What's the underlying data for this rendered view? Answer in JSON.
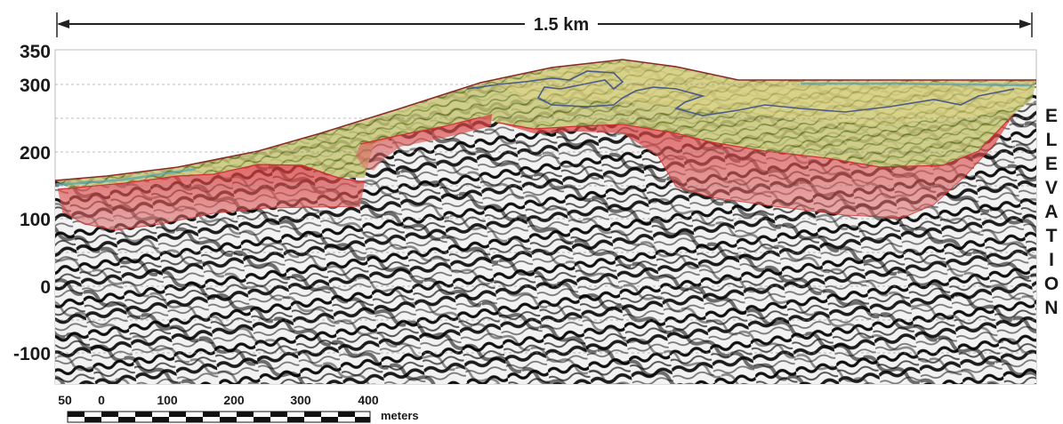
{
  "span_label": "1.5 km",
  "elevation_axis": {
    "label_letters": [
      "E",
      "L",
      "E",
      "V",
      "A",
      "T",
      "I",
      "O",
      "N"
    ],
    "ticks": [
      "350",
      "300",
      "200",
      "100",
      "0",
      "-100"
    ],
    "range": [
      -150,
      350
    ]
  },
  "scale_bar": {
    "labels": [
      "50",
      "0",
      "100",
      "200",
      "300",
      "400"
    ],
    "unit": "meters"
  },
  "colors": {
    "red_unit": "#d94040",
    "green_unit": "#a8b840",
    "yellow_unit": "#d8c860",
    "surface_line": "#8a2a2a",
    "contour_line": "#4a5a8a"
  }
}
